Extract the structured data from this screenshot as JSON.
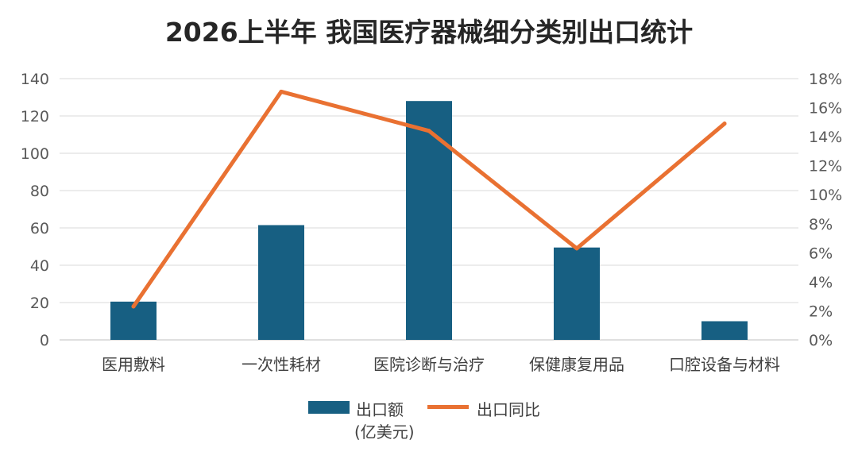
{
  "title": "2026上半年 我国医疗器械细分类别出口统计",
  "chart_data": {
    "type": "bar",
    "categories": [
      "医用敷料",
      "一次性耗材",
      "医院诊断与治疗",
      "保健康复用品",
      "口腔设备与材料"
    ],
    "series": [
      {
        "name": "出口额(亿美元)",
        "type": "bar",
        "axis": "left",
        "color": "#175F82",
        "values": [
          20.5,
          61.5,
          128,
          49.5,
          10
        ]
      },
      {
        "name": "出口同比",
        "type": "line",
        "axis": "right",
        "color": "#E97132",
        "values": [
          2.3,
          17.1,
          14.4,
          6.3,
          14.9
        ]
      }
    ],
    "left_axis": {
      "ylim": [
        0,
        140
      ],
      "ticks": [
        "0",
        "20",
        "40",
        "60",
        "80",
        "100",
        "120",
        "140"
      ]
    },
    "right_axis": {
      "ylim": [
        0,
        18
      ],
      "ticks": [
        "0%",
        "2%",
        "4%",
        "6%",
        "8%",
        "10%",
        "12%",
        "14%",
        "16%",
        "18%"
      ]
    },
    "grid": true,
    "legend_position": "bottom"
  },
  "legend": {
    "bar_label_line1": "出口额",
    "bar_label_line2": "(亿美元)",
    "line_label": "出口同比"
  }
}
